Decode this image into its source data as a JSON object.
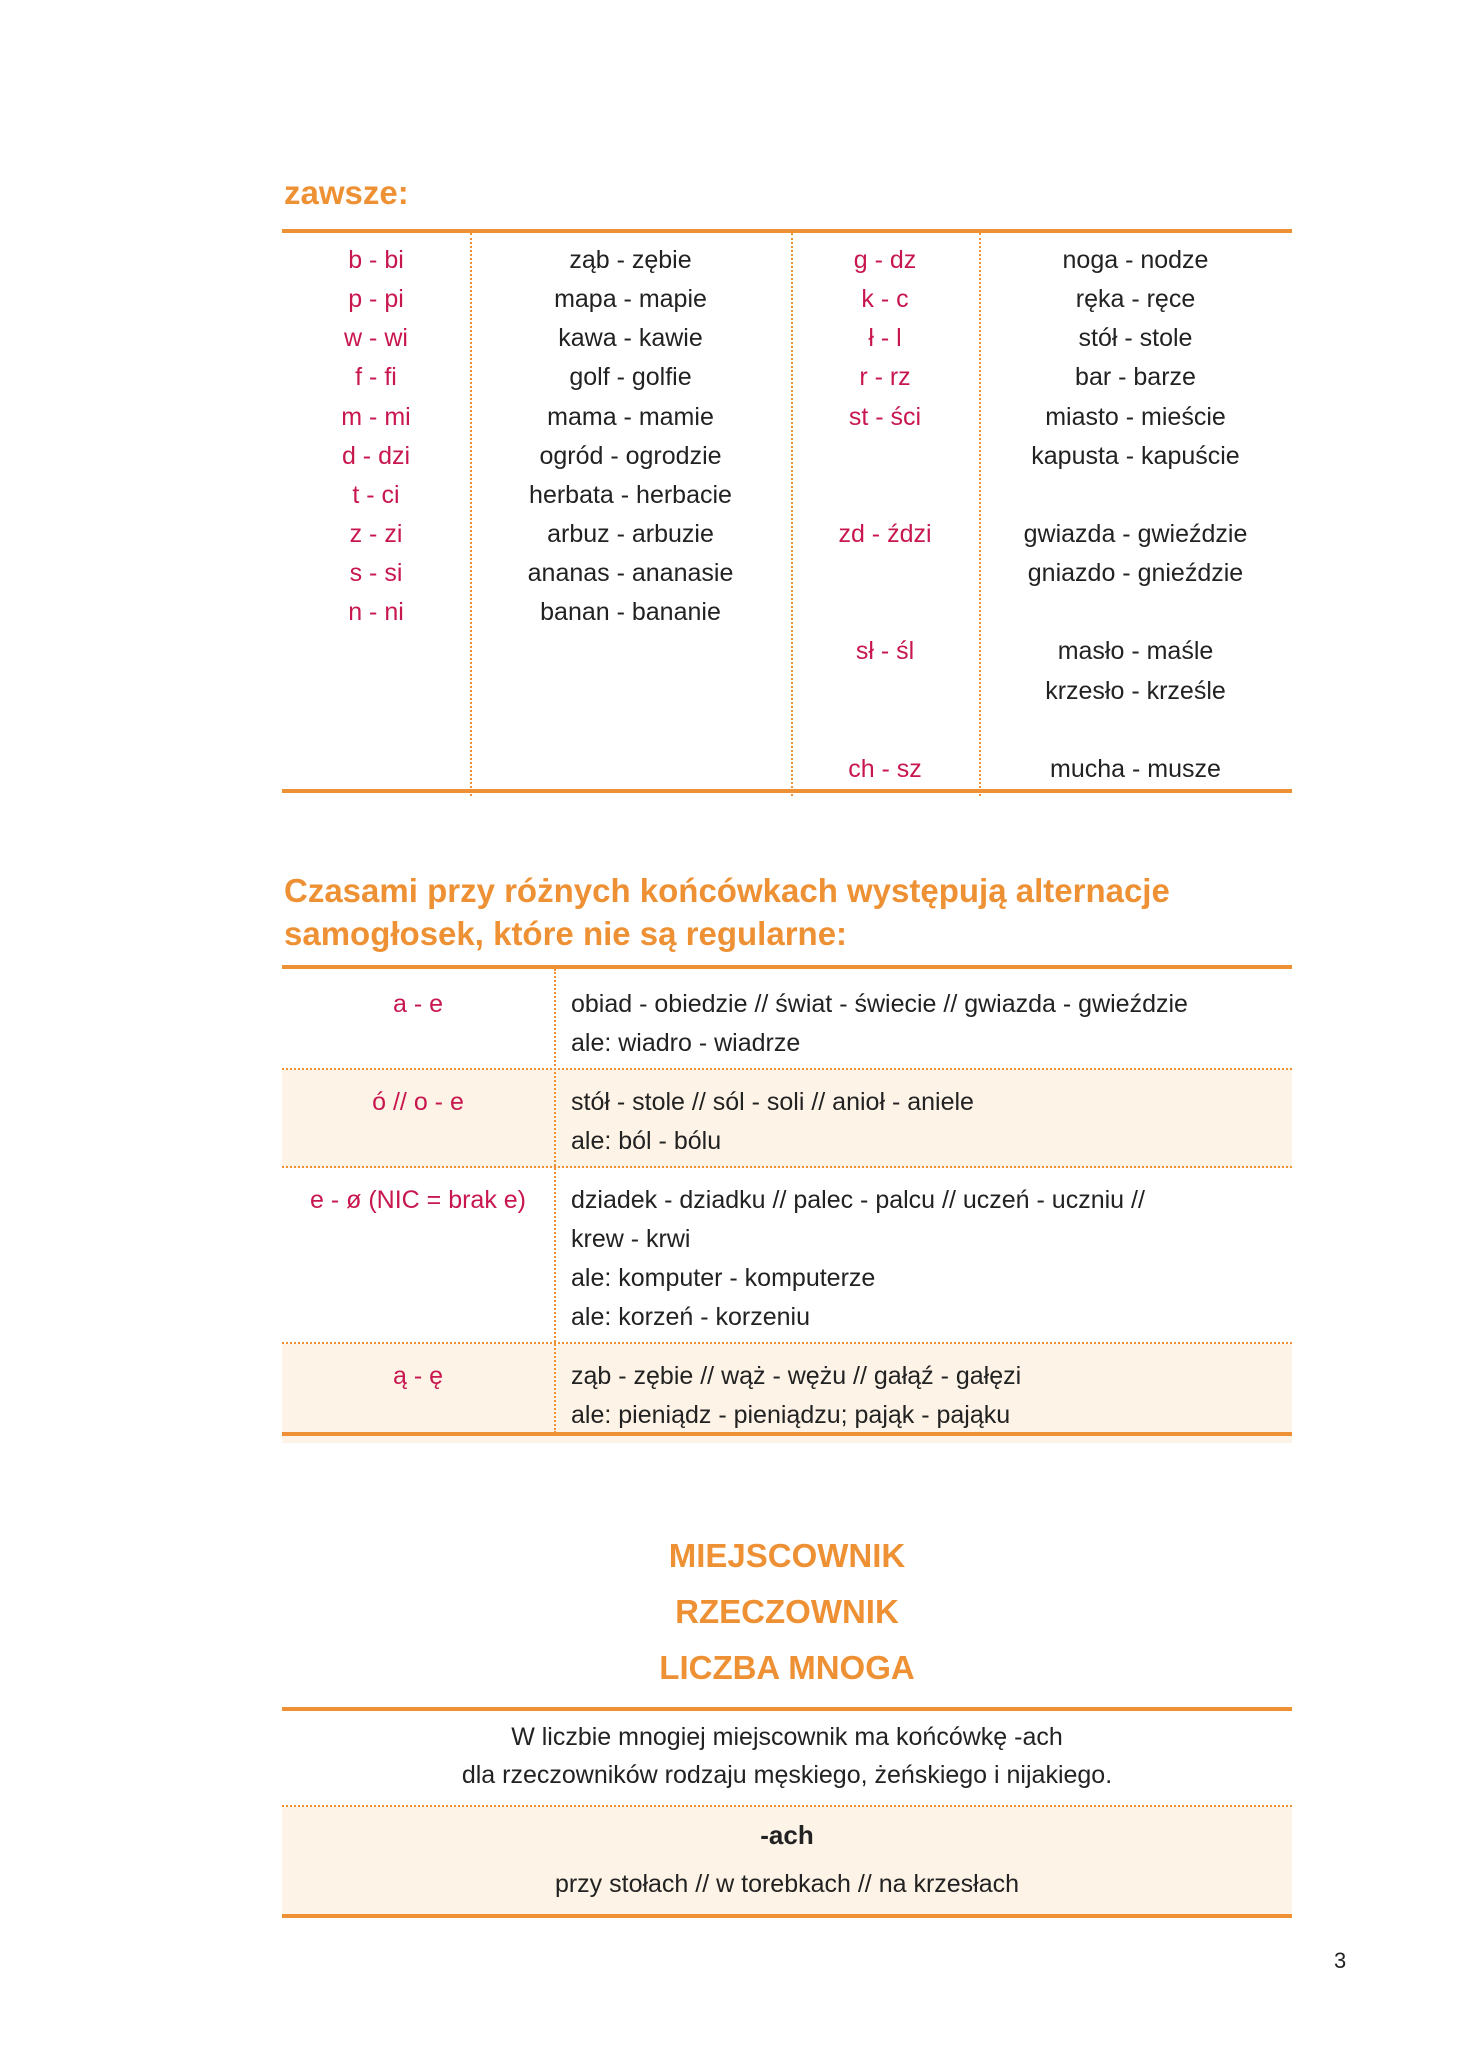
{
  "section1": {
    "heading": "zawsze:",
    "col1": [
      "b - bi",
      "p - pi",
      "w - wi",
      "f - fi",
      "m - mi",
      "d - dzi",
      "t - ci",
      "z - zi",
      "s - si",
      "n - ni",
      "",
      "",
      "",
      ""
    ],
    "col2": [
      "ząb - zębie",
      "mapa - mapie",
      "kawa - kawie",
      "golf - golfie",
      "mama - mamie",
      "ogród - ogrodzie",
      "herbata - herbacie",
      "arbuz - arbuzie",
      "ananas - ananasie",
      "banan - bananie",
      "",
      "",
      "",
      ""
    ],
    "col3": [
      "g - dz",
      "k - c",
      "ł - l",
      "r - rz",
      "st - ści",
      "",
      "",
      "zd - ździ",
      "",
      "",
      "sł - śl",
      "",
      "",
      "ch - sz"
    ],
    "col4": [
      "noga - nodze",
      "ręka - ręce",
      "stół - stole",
      "bar - barze",
      "miasto - mieście",
      "kapusta - kapuście",
      "",
      "gwiazda - gwieździe",
      "gniazdo - gnieździe",
      "",
      "masło - maśle",
      "krzesło - krześle",
      "",
      "mucha - musze"
    ]
  },
  "section2": {
    "heading_line1": "Czasami przy różnych końcówkach występują alternacje",
    "heading_line2": "samogłosek,  które nie są regularne:",
    "rows": [
      {
        "pattern": "a - e",
        "lines": [
          "obiad - obiedzie // świat - świecie // gwiazda - gwieździe",
          "ale: wiadro - wiadrze"
        ]
      },
      {
        "pattern": "ó // o - e",
        "lines": [
          "stół - stole // sól - soli // anioł - aniele",
          "ale: ból - bólu"
        ]
      },
      {
        "pattern": "e - ø (NIC = brak e)",
        "lines": [
          "dziadek - dziadku // palec - palcu // uczeń - uczniu //",
          "krew - krwi",
          "ale: komputer - komputerze",
          "ale: korzeń - korzeniu"
        ]
      },
      {
        "pattern": "ą - ę",
        "lines": [
          "ząb - zębie // wąż - wężu // gałąź - gałęzi",
          "ale: pieniądz - pieniądzu; pająk - pająku"
        ]
      }
    ]
  },
  "section3": {
    "title1": "MIEJSCOWNIK",
    "title2": "RZECZOWNIK",
    "title3": "LICZBA MNOGA",
    "desc_line1": "W liczbie mnogiej miejscownik ma końcówkę -ach",
    "desc_line2": "dla rzeczowników rodzaju męskiego,  żeńskiego i nijakiego.",
    "ending": "-ach",
    "examples": "przy stołach // w torebkach // na krzesłach"
  },
  "page_number": "3",
  "colors": {
    "accent": "#ee9135",
    "pattern_text": "#c8174f",
    "band": "#fdf3e6"
  }
}
